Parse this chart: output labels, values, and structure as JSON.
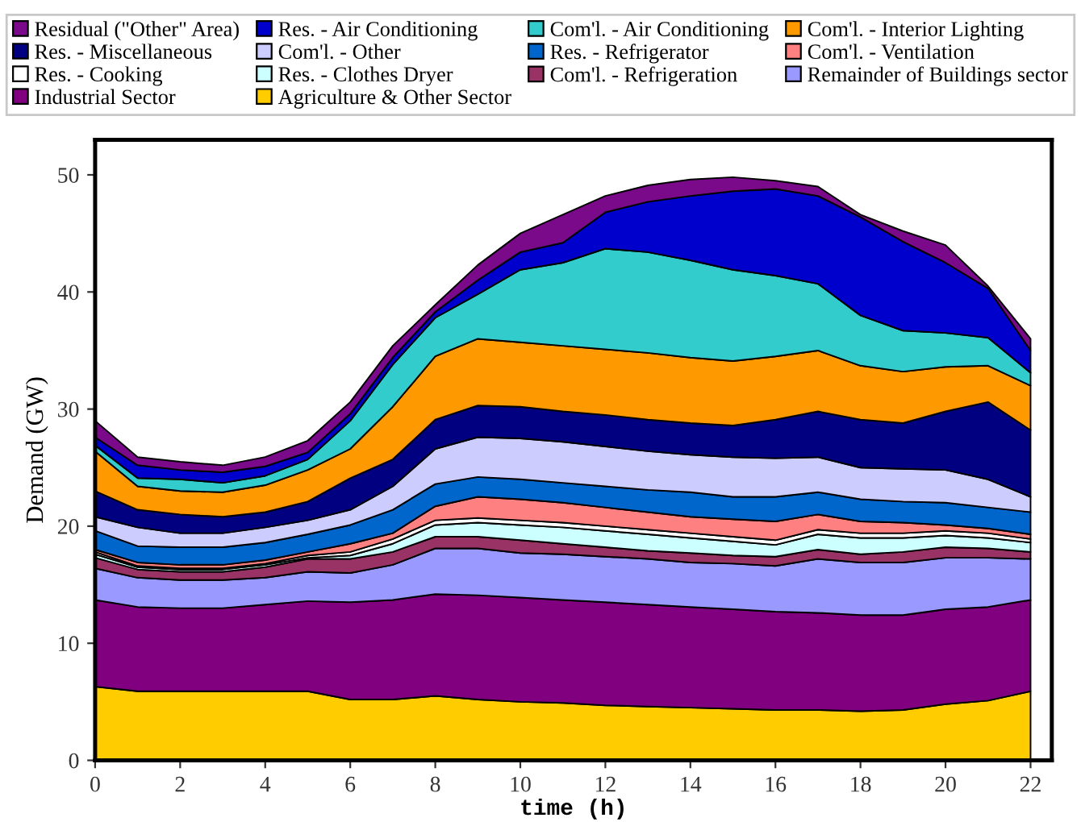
{
  "chart_data": {
    "type": "area",
    "stacked": true,
    "xlabel": "time (h)",
    "ylabel": "Demand (GW)",
    "x": [
      0,
      1,
      2,
      3,
      4,
      5,
      6,
      7,
      8,
      9,
      10,
      11,
      12,
      13,
      14,
      15,
      16,
      17,
      18,
      19,
      20,
      21,
      22
    ],
    "xlim": [
      0,
      22.5
    ],
    "xticks": [
      0,
      2,
      4,
      6,
      8,
      10,
      12,
      14,
      16,
      18,
      20,
      22
    ],
    "ylim": [
      0,
      53
    ],
    "yticks": [
      0,
      10,
      20,
      30,
      40,
      50
    ],
    "grid": false,
    "legend": "top",
    "series": [
      {
        "name": "Agriculture & Other Sector",
        "color": "#ffcc00",
        "values": [
          6.3,
          5.9,
          5.9,
          5.9,
          5.9,
          5.9,
          5.2,
          5.2,
          5.5,
          5.2,
          5.0,
          4.9,
          4.7,
          4.6,
          4.5,
          4.4,
          4.3,
          4.3,
          4.2,
          4.3,
          4.8,
          5.1,
          5.9
        ]
      },
      {
        "name": "Industrial Sector",
        "color": "#800080",
        "values": [
          7.4,
          7.2,
          7.1,
          7.1,
          7.4,
          7.7,
          8.3,
          8.5,
          8.7,
          8.9,
          8.9,
          8.8,
          8.8,
          8.7,
          8.6,
          8.5,
          8.4,
          8.3,
          8.2,
          8.1,
          8.1,
          8.0,
          7.8
        ]
      },
      {
        "name": "Remainder of Buildings sector",
        "color": "#9999ff",
        "values": [
          2.7,
          2.5,
          2.4,
          2.4,
          2.3,
          2.5,
          2.5,
          3.0,
          3.9,
          4.0,
          3.8,
          3.9,
          3.9,
          3.9,
          3.8,
          3.9,
          3.9,
          4.6,
          4.5,
          4.5,
          4.4,
          4.2,
          3.5
        ]
      },
      {
        "name": "Com'l. - Refrigeration",
        "color": "#993366",
        "values": [
          0.9,
          0.7,
          0.7,
          0.7,
          0.9,
          1.1,
          1.2,
          1.1,
          1.0,
          1.0,
          1.1,
          0.9,
          0.8,
          0.7,
          0.8,
          0.7,
          0.8,
          0.8,
          0.7,
          0.9,
          0.9,
          0.8,
          0.6
        ]
      },
      {
        "name": "Res. - Clothes Dryer",
        "color": "#ccffff",
        "values": [
          0.3,
          0.2,
          0.2,
          0.2,
          0.2,
          0.1,
          0.3,
          0.7,
          1.0,
          1.2,
          1.3,
          1.4,
          1.4,
          1.4,
          1.3,
          1.2,
          1.0,
          1.3,
          1.4,
          1.2,
          1.0,
          0.9,
          0.8
        ]
      },
      {
        "name": "Res. - Cooking",
        "color": "#ffffff",
        "values": [
          0.2,
          0.1,
          0.1,
          0.1,
          0.1,
          0.2,
          0.3,
          0.4,
          0.4,
          0.4,
          0.4,
          0.4,
          0.4,
          0.4,
          0.4,
          0.4,
          0.4,
          0.4,
          0.4,
          0.4,
          0.4,
          0.4,
          0.3
        ]
      },
      {
        "name": "Com'l. - Ventilation",
        "color": "#ff8080",
        "values": [
          0.2,
          0.3,
          0.3,
          0.3,
          0.3,
          0.3,
          0.7,
          0.5,
          1.2,
          1.8,
          1.8,
          1.7,
          1.6,
          1.5,
          1.4,
          1.5,
          1.6,
          1.3,
          1.0,
          0.9,
          0.5,
          0.4,
          0.4
        ]
      },
      {
        "name": "Res. - Refrigerator",
        "color": "#0066cc",
        "values": [
          1.6,
          1.4,
          1.5,
          1.5,
          1.5,
          1.5,
          1.6,
          2.0,
          1.9,
          1.7,
          1.7,
          1.7,
          1.8,
          1.9,
          2.1,
          1.9,
          2.1,
          1.9,
          1.9,
          1.8,
          1.9,
          1.8,
          1.9
        ]
      },
      {
        "name": "Com'l. - Other",
        "color": "#ccccff",
        "values": [
          1.2,
          1.6,
          1.2,
          1.2,
          1.3,
          1.2,
          1.3,
          2.0,
          3.0,
          3.4,
          3.5,
          3.5,
          3.4,
          3.3,
          3.2,
          3.4,
          3.3,
          3.0,
          2.7,
          2.8,
          2.8,
          2.4,
          1.3
        ]
      },
      {
        "name": "Res. - Miscellaneous",
        "color": "#000080",
        "values": [
          2.2,
          1.5,
          1.6,
          1.4,
          1.3,
          1.6,
          2.7,
          2.3,
          2.5,
          2.7,
          2.7,
          2.6,
          2.7,
          2.7,
          2.7,
          2.7,
          3.3,
          3.9,
          4.1,
          3.9,
          5.0,
          6.6,
          5.7
        ]
      },
      {
        "name": "Com'l. - Interior Lighting",
        "color": "#ff9900",
        "values": [
          3.4,
          2.0,
          2.0,
          2.1,
          2.3,
          2.7,
          2.5,
          4.5,
          5.4,
          5.7,
          5.5,
          5.6,
          5.6,
          5.7,
          5.6,
          5.5,
          5.4,
          5.2,
          4.6,
          4.4,
          3.8,
          3.1,
          3.8
        ]
      },
      {
        "name": "Com'l. - Air Conditioning",
        "color": "#33cccc",
        "values": [
          0.5,
          0.7,
          1.0,
          0.8,
          0.8,
          0.9,
          2.4,
          3.6,
          3.3,
          3.8,
          6.2,
          7.1,
          8.6,
          8.6,
          8.3,
          7.8,
          6.9,
          5.7,
          4.3,
          3.5,
          2.9,
          2.4,
          1.1
        ]
      },
      {
        "name": "Res. - Air Conditioning",
        "color": "#0000cc",
        "values": [
          0.7,
          1.1,
          0.8,
          0.9,
          0.8,
          0.6,
          0.6,
          0.6,
          0.5,
          1.2,
          1.5,
          1.7,
          3.1,
          4.3,
          5.5,
          6.7,
          7.4,
          7.5,
          8.4,
          7.6,
          6.0,
          4.2,
          1.9
        ]
      },
      {
        "name": "Residual (\"Other\" Area)",
        "color": "#7a0a8a",
        "values": [
          1.4,
          0.7,
          0.7,
          0.6,
          0.8,
          1.0,
          1.0,
          1.0,
          0.6,
          1.3,
          1.6,
          2.4,
          1.4,
          1.4,
          1.4,
          1.2,
          0.7,
          0.8,
          0.2,
          0.9,
          1.5,
          0.2,
          1.0
        ]
      }
    ]
  }
}
